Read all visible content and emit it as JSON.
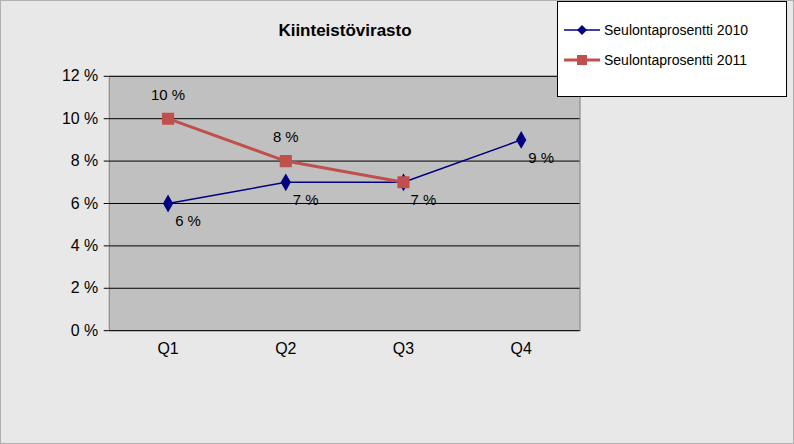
{
  "chart_data": {
    "type": "line",
    "title": "Kiinteistövirasto",
    "categories": [
      "Q1",
      "Q2",
      "Q3",
      "Q4"
    ],
    "series": [
      {
        "name": "Seulontaprosentti 2010",
        "color": "#000080",
        "marker": "diamond",
        "line_style": "solid",
        "values": [
          6,
          7,
          7,
          9
        ],
        "value_labels": [
          "6 %",
          "7 %",
          "7 %",
          "9 %"
        ]
      },
      {
        "name": "Seulontaprosentti 2011",
        "color": "#C0504D",
        "marker": "square",
        "line_style": "solid",
        "values": [
          10,
          8,
          7,
          null
        ],
        "value_labels": [
          "10 %",
          "8 %",
          null,
          null
        ]
      }
    ],
    "ylim": [
      0,
      12
    ],
    "yticks": [
      {
        "value": 0,
        "label": "0 %"
      },
      {
        "value": 2,
        "label": "2 %"
      },
      {
        "value": 4,
        "label": "4 %"
      },
      {
        "value": 6,
        "label": "6 %"
      },
      {
        "value": 8,
        "label": "8 %"
      },
      {
        "value": 10,
        "label": "10 %"
      },
      {
        "value": 12,
        "label": "12 %"
      }
    ],
    "grid": true,
    "legend": "top-right",
    "data_labels": true
  }
}
